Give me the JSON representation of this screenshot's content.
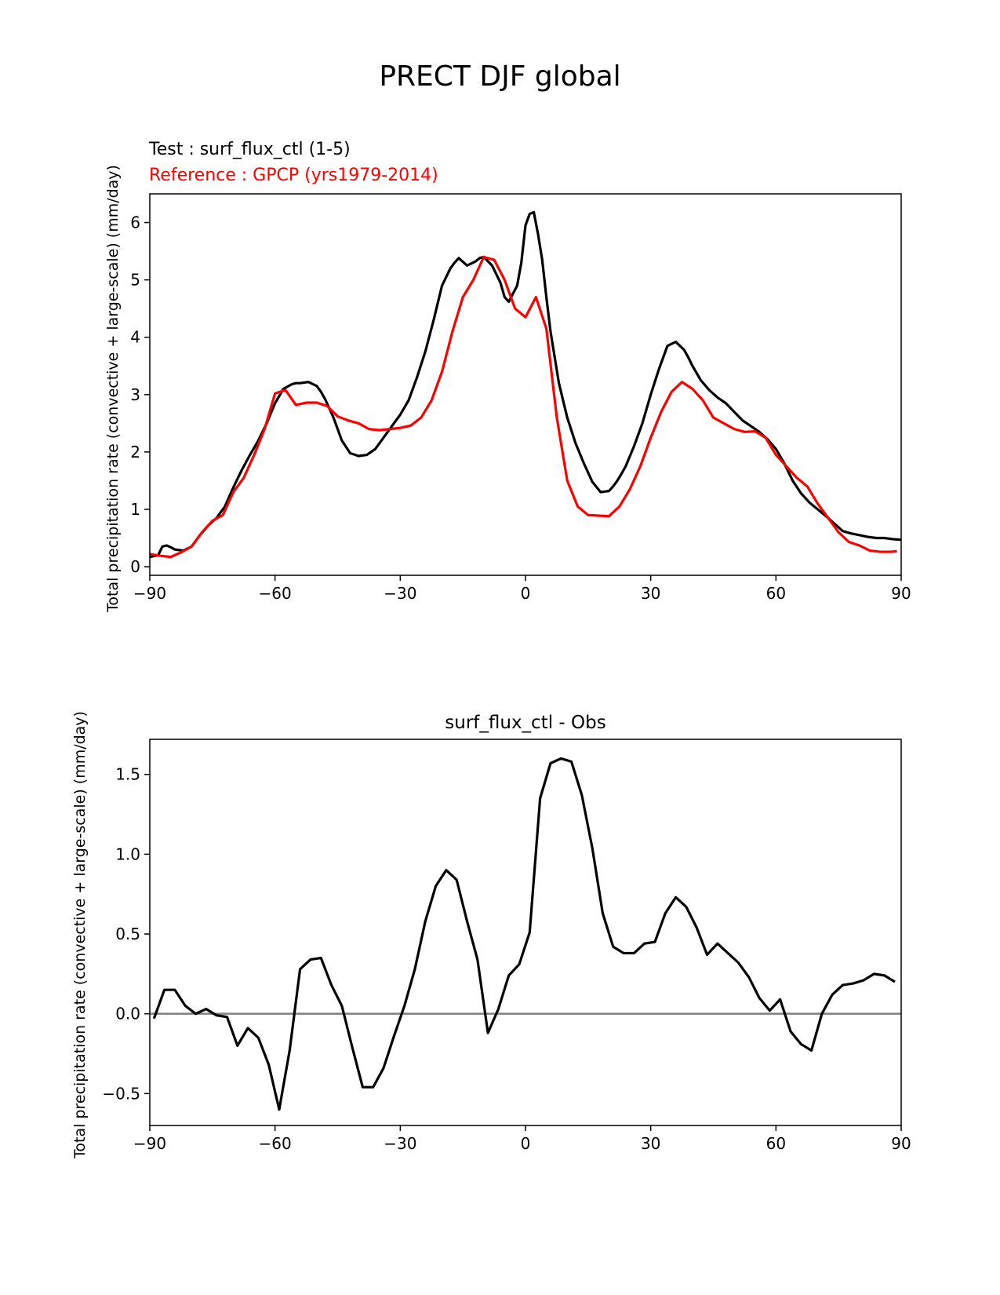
{
  "figure_title": "PRECT DJF global",
  "chart_data": [
    {
      "type": "line",
      "test_label": "Test : surf_flux_ctl (1-5)",
      "reference_label": "Reference : GPCP (yrs1979-2014)",
      "ylabel": "Total precipitation rate (convective + large-scale) (mm/day)",
      "xlim": [
        -90,
        90
      ],
      "ylim": [
        -0.15,
        6.5
      ],
      "xticks": [
        -90,
        -60,
        -30,
        0,
        30,
        60,
        90
      ],
      "xtick_labels": [
        "−90",
        "−60",
        "−30",
        "0",
        "30",
        "60",
        "90"
      ],
      "yticks": [
        0,
        1,
        2,
        3,
        4,
        5,
        6
      ],
      "ytick_labels": [
        "0",
        "1",
        "2",
        "3",
        "4",
        "5",
        "6"
      ],
      "colors": {
        "test": "#000000",
        "reference": "#ff0000"
      },
      "series": [
        {
          "key": "test",
          "x": [
            -90,
            -88,
            -87,
            -86,
            -85,
            -84,
            -82,
            -80,
            -78,
            -76,
            -74,
            -72,
            -70,
            -68,
            -66,
            -64,
            -62,
            -60,
            -58,
            -56,
            -55,
            -54,
            -52,
            -50,
            -49,
            -48,
            -46,
            -44,
            -42,
            -40,
            -38,
            -37,
            -36,
            -34,
            -32,
            -30,
            -28,
            -26,
            -24,
            -22,
            -20,
            -18,
            -17,
            -16,
            -14,
            -12,
            -11,
            -10,
            -8,
            -6,
            -5,
            -4,
            -2,
            -1,
            0,
            1,
            2,
            3,
            4,
            5,
            6,
            7,
            8,
            10,
            12,
            14,
            16,
            18,
            20,
            21,
            22,
            23,
            24,
            26,
            28,
            30,
            32,
            34,
            36,
            37,
            38,
            39,
            40,
            42,
            44,
            46,
            48,
            50,
            52,
            54,
            56,
            58,
            60,
            62,
            64,
            66,
            68,
            70,
            72,
            74,
            76,
            78,
            80,
            82,
            84,
            86,
            88,
            90
          ],
          "y": [
            0.17,
            0.2,
            0.35,
            0.37,
            0.34,
            0.3,
            0.28,
            0.35,
            0.55,
            0.72,
            0.85,
            1.05,
            1.38,
            1.68,
            1.95,
            2.2,
            2.5,
            2.85,
            3.1,
            3.18,
            3.2,
            3.2,
            3.22,
            3.15,
            3.05,
            2.92,
            2.6,
            2.2,
            1.98,
            1.93,
            1.95,
            2.0,
            2.05,
            2.25,
            2.45,
            2.65,
            2.9,
            3.3,
            3.75,
            4.3,
            4.9,
            5.2,
            5.3,
            5.38,
            5.25,
            5.32,
            5.38,
            5.4,
            5.25,
            4.95,
            4.7,
            4.62,
            4.9,
            5.3,
            5.95,
            6.15,
            6.18,
            5.8,
            5.35,
            4.7,
            4.1,
            3.65,
            3.2,
            2.6,
            2.15,
            1.8,
            1.48,
            1.3,
            1.32,
            1.4,
            1.5,
            1.62,
            1.75,
            2.1,
            2.5,
            3.0,
            3.45,
            3.85,
            3.92,
            3.85,
            3.78,
            3.65,
            3.5,
            3.25,
            3.08,
            2.95,
            2.85,
            2.7,
            2.55,
            2.45,
            2.35,
            2.22,
            2.05,
            1.8,
            1.5,
            1.28,
            1.12,
            1.0,
            0.88,
            0.75,
            0.62,
            0.58,
            0.55,
            0.52,
            0.5,
            0.5,
            0.48,
            0.47
          ]
        },
        {
          "key": "reference",
          "x": [
            -90,
            -87.5,
            -85,
            -82.5,
            -80,
            -77.5,
            -75,
            -72.5,
            -70,
            -67.5,
            -65,
            -62.5,
            -60,
            -57.5,
            -55,
            -52.5,
            -50,
            -47.5,
            -45,
            -42.5,
            -40,
            -37.5,
            -35,
            -32.5,
            -30,
            -27.5,
            -25,
            -22.5,
            -20,
            -17.5,
            -15,
            -12.5,
            -10,
            -7.5,
            -5,
            -2.5,
            0,
            2.5,
            5,
            7.5,
            10,
            12.5,
            15,
            17.5,
            20,
            22.5,
            25,
            27.5,
            30,
            32.5,
            35,
            37.5,
            40,
            42.5,
            45,
            47.5,
            50,
            52.5,
            55,
            57.5,
            60,
            62.5,
            65,
            67.5,
            70,
            72.5,
            75,
            77.5,
            80,
            82.5,
            85,
            87.5,
            89
          ],
          "y": [
            0.22,
            0.19,
            0.17,
            0.25,
            0.35,
            0.6,
            0.8,
            0.9,
            1.3,
            1.55,
            1.95,
            2.4,
            3.02,
            3.08,
            2.82,
            2.86,
            2.86,
            2.8,
            2.62,
            2.55,
            2.5,
            2.4,
            2.38,
            2.4,
            2.42,
            2.46,
            2.6,
            2.9,
            3.4,
            4.1,
            4.7,
            5.0,
            5.4,
            5.35,
            5.0,
            4.5,
            4.35,
            4.7,
            4.15,
            2.6,
            1.5,
            1.05,
            0.9,
            0.89,
            0.88,
            1.05,
            1.35,
            1.75,
            2.25,
            2.7,
            3.05,
            3.22,
            3.1,
            2.9,
            2.6,
            2.5,
            2.4,
            2.35,
            2.36,
            2.25,
            1.95,
            1.75,
            1.55,
            1.4,
            1.1,
            0.85,
            0.6,
            0.43,
            0.37,
            0.28,
            0.26,
            0.26,
            0.27
          ]
        }
      ]
    },
    {
      "type": "line",
      "title": "surf_flux_ctl - Obs",
      "ylabel": "Total precipitation rate (convective + large-scale) (mm/day)",
      "xlim": [
        -90,
        90
      ],
      "ylim": [
        -0.7,
        1.72
      ],
      "xticks": [
        -90,
        -60,
        -30,
        0,
        30,
        60,
        90
      ],
      "xtick_labels": [
        "−90",
        "−60",
        "−30",
        "0",
        "30",
        "60",
        "90"
      ],
      "yticks": [
        -0.5,
        0.0,
        0.5,
        1.0,
        1.5
      ],
      "ytick_labels": [
        "−0.5",
        "0.0",
        "0.5",
        "1.0",
        "1.5"
      ],
      "zero_line": 0,
      "colors": {
        "difference": "#000000",
        "zero_line": "#808080"
      },
      "series": [
        {
          "key": "difference",
          "x": [
            -89,
            -86.5,
            -84,
            -81.5,
            -79,
            -76.5,
            -74,
            -71.5,
            -69,
            -66.5,
            -64,
            -61.5,
            -59,
            -56.5,
            -54,
            -51.5,
            -49,
            -46.5,
            -44,
            -41.5,
            -39,
            -36.5,
            -34,
            -31.5,
            -29,
            -26.5,
            -24,
            -21.5,
            -19,
            -16.5,
            -14,
            -11.5,
            -9,
            -6.5,
            -4,
            -1.5,
            1,
            3.5,
            6,
            8.5,
            11,
            13.5,
            16,
            18.5,
            21,
            23.5,
            26,
            28.5,
            31,
            33.5,
            36,
            38.5,
            41,
            43.5,
            46,
            48.5,
            51,
            53.5,
            56,
            58.5,
            61,
            63.5,
            66,
            68.5,
            71,
            73.5,
            76,
            78.5,
            81,
            83.5,
            86,
            88.5
          ],
          "y": [
            -0.03,
            0.15,
            0.15,
            0.05,
            0.0,
            0.03,
            -0.01,
            -0.02,
            -0.2,
            -0.09,
            -0.15,
            -0.32,
            -0.6,
            -0.23,
            0.28,
            0.34,
            0.35,
            0.18,
            0.05,
            -0.21,
            -0.46,
            -0.46,
            -0.34,
            -0.14,
            0.05,
            0.28,
            0.58,
            0.8,
            0.9,
            0.84,
            0.58,
            0.34,
            -0.12,
            0.03,
            0.24,
            0.31,
            0.51,
            1.35,
            1.57,
            1.6,
            1.58,
            1.37,
            1.04,
            0.63,
            0.42,
            0.38,
            0.38,
            0.44,
            0.45,
            0.63,
            0.73,
            0.67,
            0.54,
            0.37,
            0.44,
            0.38,
            0.32,
            0.23,
            0.1,
            0.02,
            0.09,
            -0.11,
            -0.19,
            -0.23,
            0.0,
            0.12,
            0.18,
            0.19,
            0.21,
            0.25,
            0.24,
            0.2
          ]
        }
      ]
    }
  ]
}
